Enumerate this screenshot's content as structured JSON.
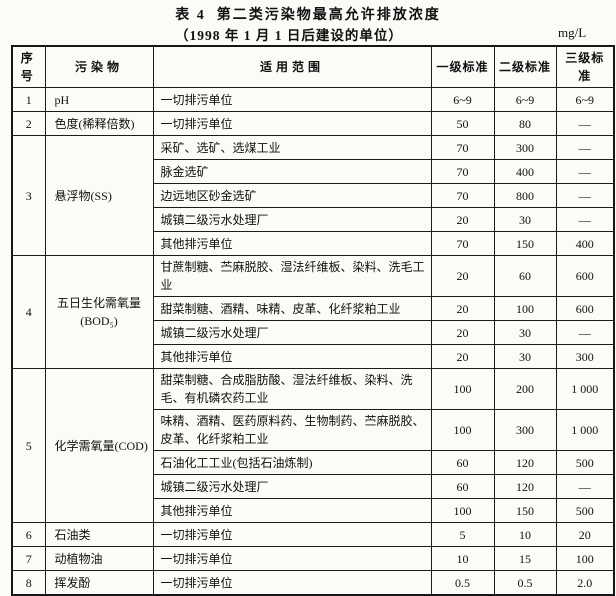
{
  "title": {
    "line1": "表 4  第二类污染物最高允许排放浓度",
    "line2": "（1998 年 1 月 1 日后建设的单位）",
    "unit": "mg/L"
  },
  "table": {
    "headers": [
      "序号",
      "污染物",
      "适用范围",
      "一级标准",
      "二级标准",
      "三级标准"
    ],
    "groups": [
      {
        "no": "1",
        "pollutant": [
          "pH"
        ],
        "rows": [
          [
            "一切排污单位",
            "6~9",
            "6~9",
            "6~9"
          ]
        ]
      },
      {
        "no": "2",
        "pollutant": [
          "色度(稀释倍数)"
        ],
        "rows": [
          [
            "一切排污单位",
            "50",
            "80",
            "—"
          ]
        ]
      },
      {
        "no": "3",
        "pollutant": [
          "悬浮物(SS)"
        ],
        "rows": [
          [
            "采矿、选矿、选煤工业",
            "70",
            "300",
            "—"
          ],
          [
            "脉金选矿",
            "70",
            "400",
            "—"
          ],
          [
            "边远地区砂金选矿",
            "70",
            "800",
            "—"
          ],
          [
            "城镇二级污水处理厂",
            "20",
            "30",
            "—"
          ],
          [
            "其他排污单位",
            "70",
            "150",
            "400"
          ]
        ]
      },
      {
        "no": "4",
        "pollutant": [
          "五日生化需氧量",
          "(BOD₅)"
        ],
        "rows": [
          [
            "甘蔗制糖、苎麻脱胶、湿法纤维板、染料、洗毛工业",
            "20",
            "60",
            "600"
          ],
          [
            "甜菜制糖、酒精、味精、皮革、化纤浆粕工业",
            "20",
            "100",
            "600"
          ],
          [
            "城镇二级污水处理厂",
            "20",
            "30",
            "—"
          ],
          [
            "其他排污单位",
            "20",
            "30",
            "300"
          ]
        ]
      },
      {
        "no": "5",
        "pollutant": [
          "化学需氧量(COD)"
        ],
        "rows": [
          [
            "甜菜制糖、合成脂肪酸、湿法纤维板、染料、洗毛、有机磷农药工业",
            "100",
            "200",
            "1 000"
          ],
          [
            "味精、酒精、医药原料药、生物制药、苎麻脱胶、皮革、化纤浆粕工业",
            "100",
            "300",
            "1 000"
          ],
          [
            "石油化工工业(包括石油炼制)",
            "60",
            "120",
            "500"
          ],
          [
            "城镇二级污水处理厂",
            "60",
            "120",
            "—"
          ],
          [
            "其他排污单位",
            "100",
            "150",
            "500"
          ]
        ]
      },
      {
        "no": "6",
        "pollutant": [
          "石油类"
        ],
        "rows": [
          [
            "一切排污单位",
            "5",
            "10",
            "20"
          ]
        ]
      },
      {
        "no": "7",
        "pollutant": [
          "动植物油"
        ],
        "rows": [
          [
            "一切排污单位",
            "10",
            "15",
            "100"
          ]
        ]
      },
      {
        "no": "8",
        "pollutant": [
          "挥发酚"
        ],
        "rows": [
          [
            "一切排污单位",
            "0.5",
            "0.5",
            "2.0"
          ]
        ]
      }
    ]
  }
}
